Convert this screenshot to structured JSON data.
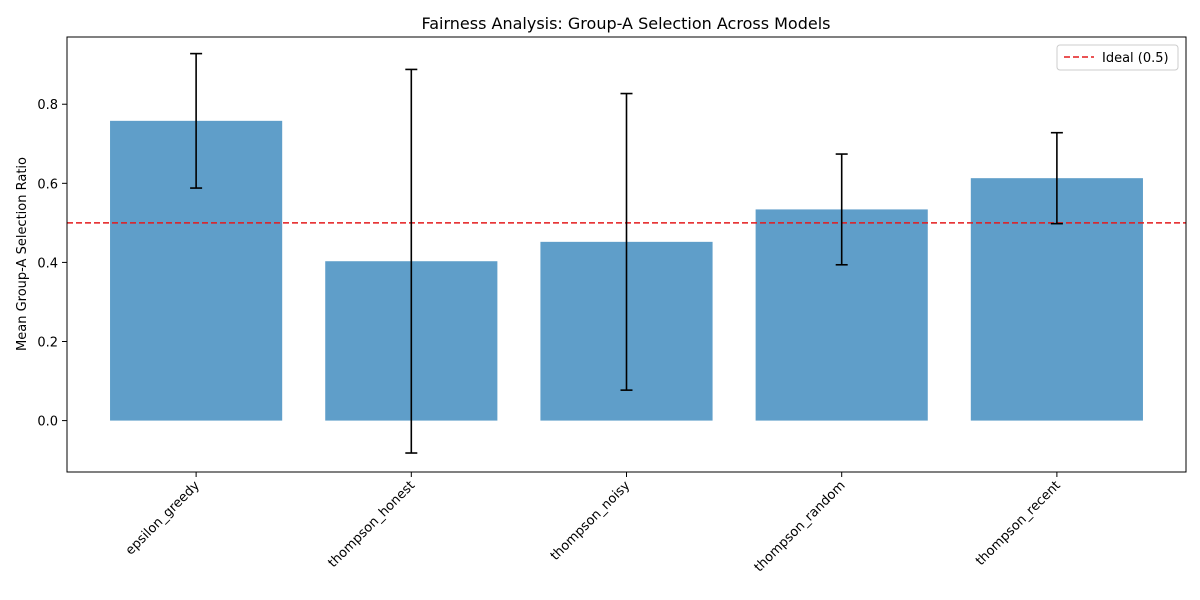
{
  "chart_data": {
    "type": "bar",
    "title": "Fairness Analysis: Group-A Selection Across Models",
    "xlabel": "",
    "ylabel": "Mean Group-A Selection Ratio",
    "categories": [
      "epsilon_greedy",
      "thompson_honest",
      "thompson_noisy",
      "thompson_random",
      "thompson_recent"
    ],
    "values": [
      0.758,
      0.403,
      0.452,
      0.534,
      0.613
    ],
    "errors": [
      0.17,
      0.485,
      0.375,
      0.14,
      0.115
    ],
    "ylim": [
      -0.13,
      0.97
    ],
    "yticks": [
      0.0,
      0.2,
      0.4,
      0.6,
      0.8
    ],
    "ytick_labels": [
      "0.0",
      "0.2",
      "0.4",
      "0.6",
      "0.8"
    ],
    "bar_color": "#5f9ec9",
    "reference_line": {
      "value": 0.5,
      "label": "Ideal (0.5)",
      "color": "#e41a1c"
    },
    "legend": {
      "position": "top-right",
      "entries": [
        "Ideal (0.5)"
      ]
    },
    "grid": false
  }
}
